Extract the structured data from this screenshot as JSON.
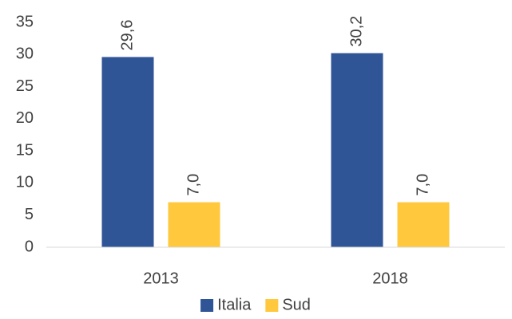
{
  "chart_data": {
    "type": "bar",
    "categories": [
      "2013",
      "2018"
    ],
    "series": [
      {
        "name": "Italia",
        "color": "#2f5597",
        "values": [
          29.6,
          30.2
        ],
        "value_labels": [
          "29,6",
          "30,2"
        ]
      },
      {
        "name": "Sud",
        "color": "#ffc83d",
        "values": [
          7.0,
          7.0
        ],
        "value_labels": [
          "7,0",
          "7,0"
        ]
      }
    ],
    "ylim": [
      0,
      35
    ],
    "yticks": [
      0,
      5,
      10,
      15,
      20,
      25,
      30,
      35
    ],
    "grid": false,
    "legend": "bottom"
  }
}
